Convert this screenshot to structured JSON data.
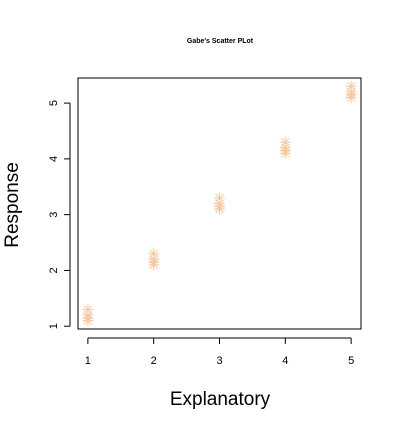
{
  "chart_data": {
    "type": "scatter",
    "title": "Gabe's Scatter PLot",
    "xlabel": "Explanatory",
    "ylabel": "Response",
    "xlim": [
      0.85,
      5.15
    ],
    "ylim": [
      0.95,
      5.45
    ],
    "xticks": [
      1,
      2,
      3,
      4,
      5
    ],
    "yticks": [
      1,
      2,
      3,
      4,
      5
    ],
    "grid": false,
    "marker": "asterisk",
    "point_color": "#f7c9a0",
    "series": [
      {
        "x": [
          1,
          1,
          1,
          1,
          2,
          2,
          2,
          2,
          3,
          3,
          3,
          3,
          4,
          4,
          4,
          4,
          5,
          5,
          5,
          5
        ],
        "y": [
          1.1,
          1.2,
          1.3,
          1.15,
          2.1,
          2.2,
          2.3,
          2.15,
          3.1,
          3.2,
          3.3,
          3.15,
          4.1,
          4.2,
          4.3,
          4.15,
          5.1,
          5.2,
          5.3,
          5.15
        ]
      }
    ]
  }
}
